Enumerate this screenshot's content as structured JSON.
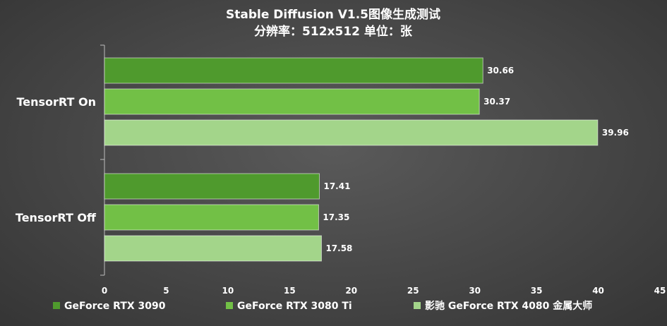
{
  "chart_data": {
    "type": "bar",
    "orientation": "horizontal",
    "title": "Stable Diffusion V1.5图像生成测试",
    "subtitle": "分辨率：512x512 单位：张",
    "categories": [
      "TensorRT On",
      "TensorRT Off"
    ],
    "series": [
      {
        "name": "GeForce RTX 3090",
        "values": [
          30.66,
          17.41
        ],
        "color": "#4f9a2d"
      },
      {
        "name": "GeForce RTX 3080 Ti",
        "values": [
          30.37,
          17.35
        ],
        "color": "#72c046"
      },
      {
        "name": "影驰 GeForce RTX 4080 金属大师",
        "values": [
          39.96,
          17.58
        ],
        "color": "#a3d58a"
      }
    ],
    "xlim": [
      0,
      45
    ],
    "xticks": [
      0,
      5,
      10,
      15,
      20,
      25,
      30,
      35,
      40,
      45
    ],
    "grid": false,
    "legend_position": "bottom"
  }
}
